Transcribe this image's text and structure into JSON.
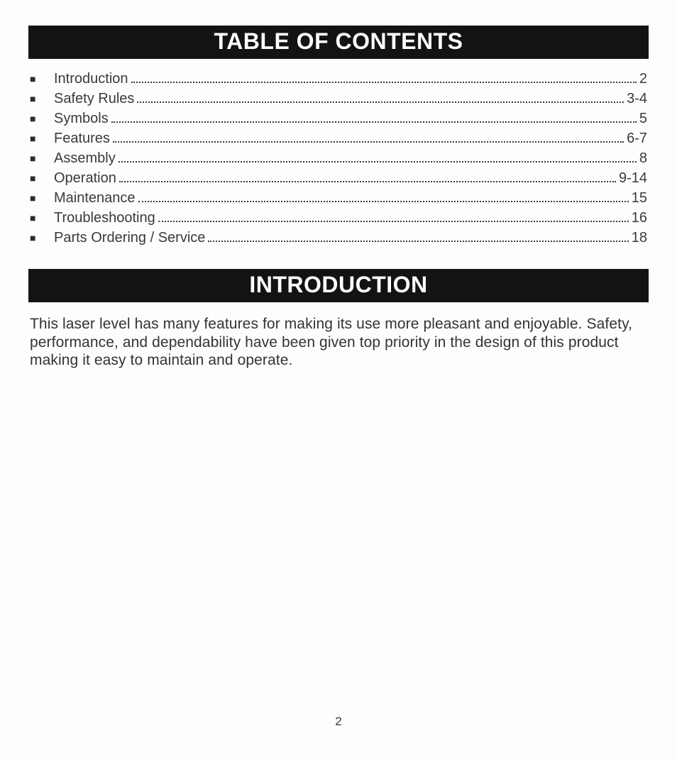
{
  "headers": {
    "toc": "TABLE OF CONTENTS",
    "intro": "INTRODUCTION"
  },
  "toc": {
    "items": [
      {
        "label": "Introduction",
        "page": "2"
      },
      {
        "label": "Safety Rules",
        "page": "3-4"
      },
      {
        "label": "Symbols",
        "page": "5"
      },
      {
        "label": "Features",
        "page": "6-7"
      },
      {
        "label": "Assembly",
        "page": "8"
      },
      {
        "label": "Operation",
        "page": "9-14"
      },
      {
        "label": "Maintenance",
        "page": "15"
      },
      {
        "label": "Troubleshooting",
        "page": "16"
      },
      {
        "label": "Parts Ordering / Service",
        "page": "18"
      }
    ],
    "bullet_glyph": "■",
    "font_size_pt": 15,
    "text_color": "#3a3a3a",
    "dot_color": "#3a3a3a"
  },
  "intro": {
    "text": "This laser level has many features for making its use more pleasant and enjoyable. Safety, performance, and dependability have been given top priority in the design of this product making it easy to maintain and operate."
  },
  "page_number": "2",
  "style": {
    "banner_bg": "#131313",
    "banner_fg": "#ffffff",
    "banner_font_size_pt": 24,
    "banner_font_weight": 800,
    "page_bg": "#fdfdfd",
    "body_text_color": "#333333",
    "font_family": "Helvetica"
  }
}
